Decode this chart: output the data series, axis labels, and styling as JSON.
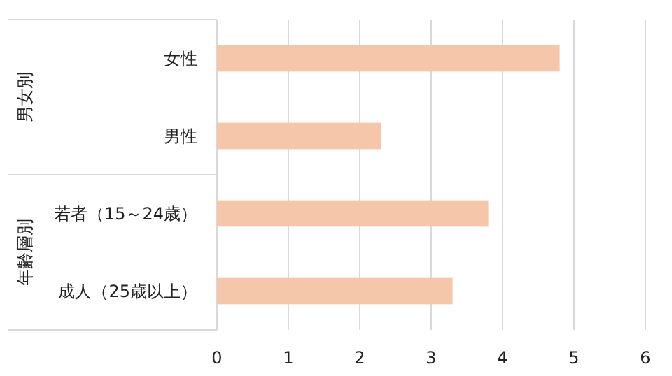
{
  "chart_data": {
    "type": "bar",
    "orientation": "horizontal",
    "categories": [
      "女性",
      "男性",
      "若者（15～24歳）",
      "成人（25歳以上）"
    ],
    "values": [
      4.8,
      2.3,
      3.8,
      3.3
    ],
    "color": "#f5c6aa",
    "xlim": [
      0,
      6
    ],
    "xticks": [
      0,
      1,
      2,
      3,
      4,
      5,
      6
    ],
    "grid": "x",
    "annotations": [
      "男女別",
      "年齢層別"
    ]
  }
}
